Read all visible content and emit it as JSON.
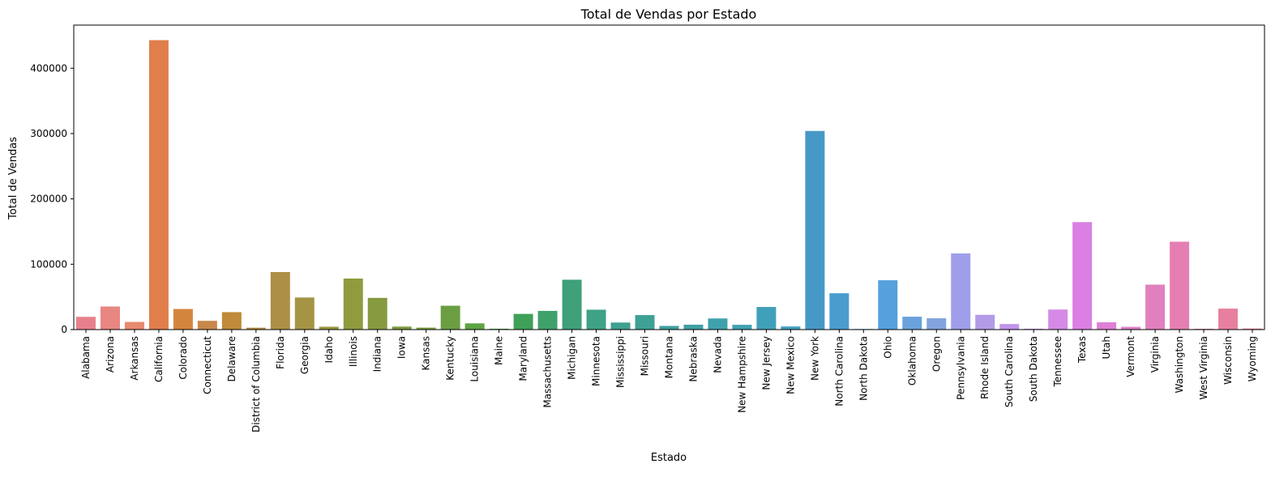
{
  "chart_data": {
    "type": "bar",
    "title": "Total de Vendas por Estado",
    "xlabel": "Estado",
    "ylabel": "Total de Vendas",
    "ylim": [
      0,
      466000
    ],
    "yticks": [
      0,
      100000,
      200000,
      300000,
      400000
    ],
    "grid": false,
    "legend": "none",
    "categories": [
      "Alabama",
      "Arizona",
      "Arkansas",
      "California",
      "Colorado",
      "Connecticut",
      "Delaware",
      "District of Columbia",
      "Florida",
      "Georgia",
      "Idaho",
      "Illinois",
      "Indiana",
      "Iowa",
      "Kansas",
      "Kentucky",
      "Louisiana",
      "Maine",
      "Maryland",
      "Massachusetts",
      "Michigan",
      "Minnesota",
      "Mississippi",
      "Missouri",
      "Montana",
      "Nebraska",
      "Nevada",
      "New Hampshire",
      "New Jersey",
      "New Mexico",
      "New York",
      "North Carolina",
      "North Dakota",
      "Ohio",
      "Oklahoma",
      "Oregon",
      "Pennsylvania",
      "Rhode Island",
      "South Carolina",
      "South Dakota",
      "Tennessee",
      "Texas",
      "Utah",
      "Vermont",
      "Virginia",
      "Washington",
      "West Virginia",
      "Wisconsin",
      "Wyoming"
    ],
    "values": [
      19500,
      35300,
      11700,
      443000,
      31500,
      13400,
      26700,
      2900,
      88000,
      49100,
      4400,
      78100,
      48500,
      4600,
      3000,
      36500,
      9500,
      1300,
      24000,
      28600,
      76300,
      30400,
      10800,
      22200,
      5600,
      7500,
      17000,
      7300,
      34600,
      4800,
      304000,
      55600,
      900,
      75500,
      19700,
      17300,
      116500,
      22600,
      8500,
      1300,
      30700,
      164500,
      11200,
      4200,
      68800,
      134500,
      1200,
      32100,
      1600
    ],
    "colors": [
      "#e8808c",
      "#e88682",
      "#e68a6e",
      "#e07e4c",
      "#d4853d",
      "#c8884a",
      "#bf8a3a",
      "#b98c3d",
      "#ad8f45",
      "#a49444",
      "#9b9640",
      "#909b3e",
      "#869a40",
      "#7e9b3e",
      "#779b3e",
      "#6b9e42",
      "#5ea343",
      "#4fa544",
      "#3fa058",
      "#3fa06a",
      "#3fa07a",
      "#3fa186",
      "#3fa08f",
      "#3fa096",
      "#3fa09e",
      "#3fa0a5",
      "#3fa1ab",
      "#3fa1b2",
      "#41a0b9",
      "#44a0c3",
      "#4699c6",
      "#4a9ccf",
      "#4fa0d6",
      "#56a1dc",
      "#6aa2dc",
      "#82a3dd",
      "#a09eea",
      "#b39be8",
      "#c095e8",
      "#ca8fe8",
      "#d58ae6",
      "#db7fe3",
      "#de7fd6",
      "#e07fca",
      "#e27fbf",
      "#e57fb3",
      "#e67fa8",
      "#e7809f",
      "#e88096"
    ]
  }
}
